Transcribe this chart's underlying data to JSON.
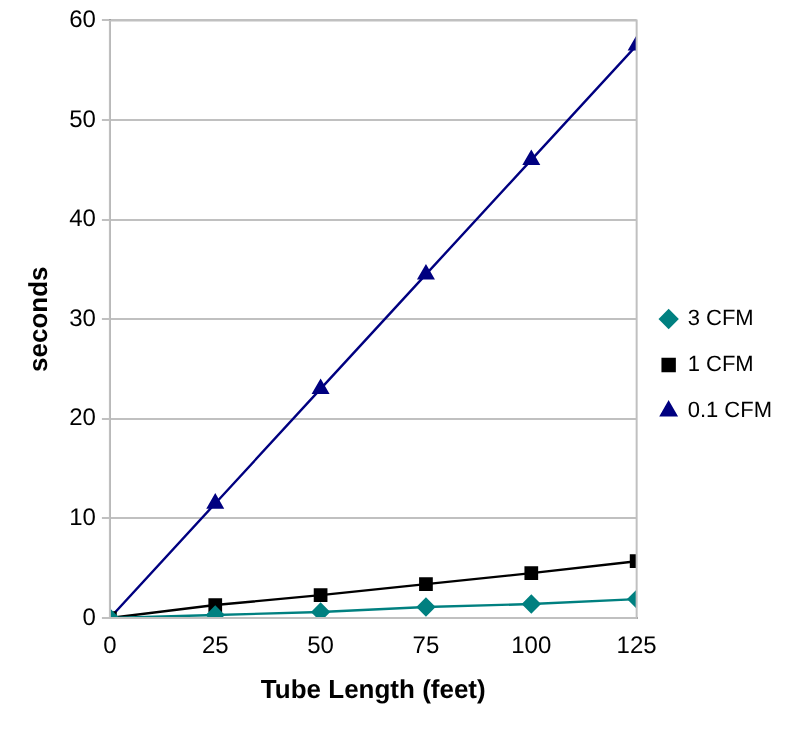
{
  "chart_data": {
    "type": "line",
    "xlabel": "Tube Length (feet)",
    "ylabel": "seconds",
    "x": [
      0,
      25,
      50,
      75,
      100,
      125
    ],
    "series": [
      {
        "name": "3 CFM",
        "color": "#008080",
        "marker": "diamond",
        "values": [
          0,
          0.3,
          0.6,
          1.1,
          1.4,
          1.9
        ]
      },
      {
        "name": "1 CFM",
        "color": "#000000",
        "marker": "square",
        "values": [
          0,
          1.3,
          2.3,
          3.4,
          4.5,
          5.7
        ]
      },
      {
        "name": "0.1 CFM",
        "color": "#000080",
        "marker": "triangle",
        "values": [
          0,
          11.5,
          23,
          34.5,
          46,
          57.5
        ]
      }
    ],
    "xlim": [
      0,
      125
    ],
    "xticks": [
      0,
      25,
      50,
      75,
      100,
      125
    ],
    "ylim": [
      0,
      60
    ],
    "yticks": [
      0,
      10,
      20,
      30,
      40,
      50,
      60
    ],
    "grid": "y",
    "legend": "right"
  }
}
